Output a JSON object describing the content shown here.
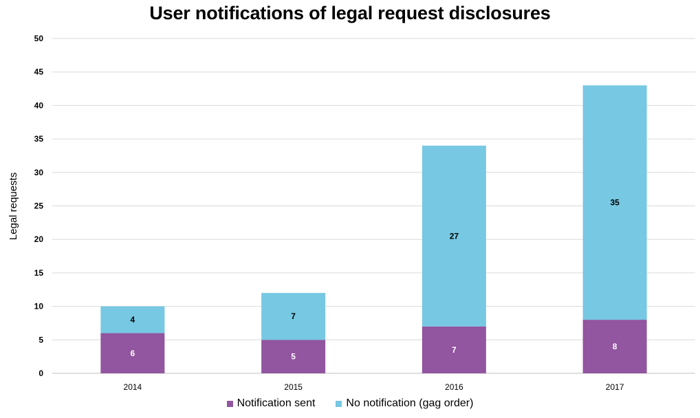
{
  "chart_data": {
    "type": "bar",
    "stacked": true,
    "title": "User notifications of legal request disclosures",
    "ylabel": "Legal requests",
    "xlabel": "",
    "categories": [
      "2014",
      "2015",
      "2016",
      "2017"
    ],
    "ylim": [
      0,
      50
    ],
    "yticks": [
      0,
      5,
      10,
      15,
      20,
      25,
      30,
      35,
      40,
      45,
      50
    ],
    "grid": true,
    "legend_position": "bottom",
    "series": [
      {
        "name": "Notification sent",
        "values": [
          6,
          5,
          7,
          8
        ],
        "color": "#92559f",
        "label_color": "#ffffff"
      },
      {
        "name": "No notification (gag order)",
        "values": [
          4,
          7,
          27,
          35
        ],
        "color": "#77c8e2",
        "label_color": "#000000"
      }
    ]
  }
}
